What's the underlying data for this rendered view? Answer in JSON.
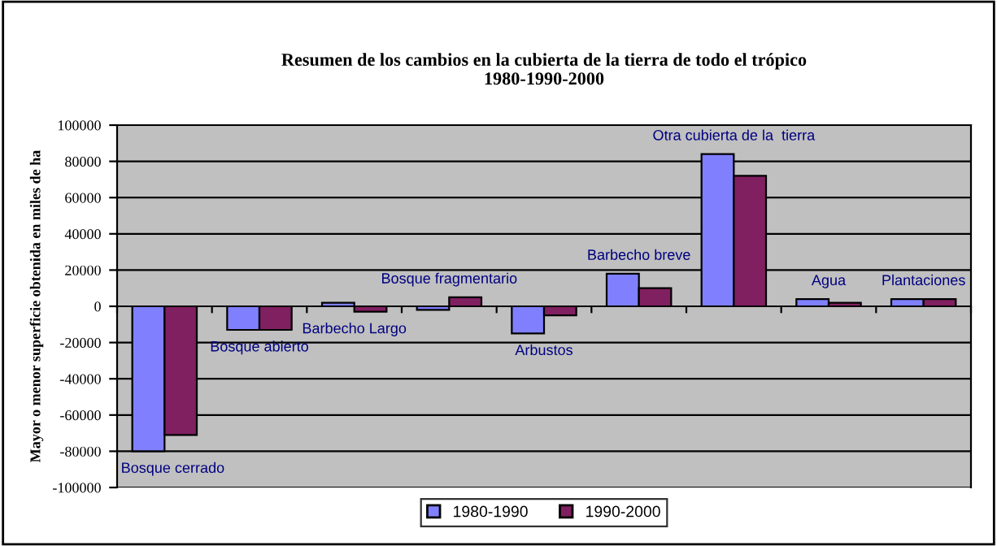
{
  "chart_data": {
    "type": "bar",
    "title": "Resumen de los cambios en la cubierta de la tierra de todo el trópico\n1980-1990-2000",
    "ylabel": "Mayor o menor superficie obtenida en miles de ha",
    "categories": [
      "Bosque cerrado",
      "Bosque abierto",
      "Barbecho Largo",
      "Bosque fragmentario",
      "Arbustos",
      "Barbecho breve",
      "Otra cubierta de la  tierra",
      "Agua",
      "Plantaciones"
    ],
    "series": [
      {
        "name": "1980-1990",
        "color": "#8080ff",
        "values": [
          -80000,
          -13000,
          2000,
          -2000,
          -15000,
          18000,
          84000,
          4000,
          4000
        ]
      },
      {
        "name": "1990-2000",
        "color": "#802060",
        "values": [
          -71000,
          -13000,
          -3000,
          5000,
          -5000,
          10000,
          72000,
          2000,
          4000
        ]
      }
    ],
    "ylim": [
      -100000,
      100000
    ],
    "yticks": [
      -100000,
      -80000,
      -60000,
      -40000,
      -20000,
      0,
      20000,
      40000,
      60000,
      80000,
      100000
    ],
    "grid": "y",
    "legend": "bottom"
  }
}
